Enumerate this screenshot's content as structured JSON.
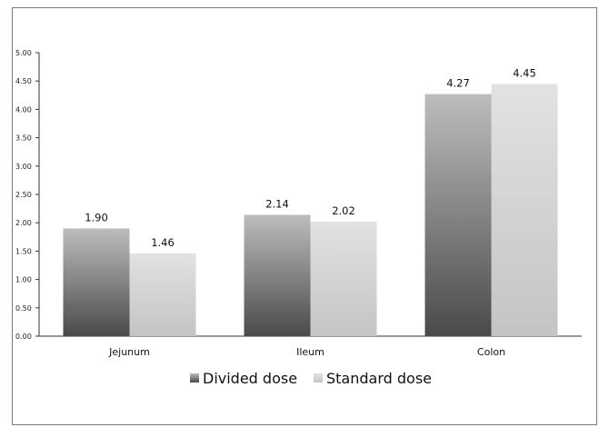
{
  "chart_data": {
    "type": "bar",
    "categories": [
      "Jejunum",
      "Ileum",
      "Colon"
    ],
    "series": [
      {
        "name": "Divided dose",
        "values": [
          1.9,
          2.14,
          4.27
        ],
        "labels": [
          "1.90",
          "2.14",
          "4.27"
        ]
      },
      {
        "name": "Standard dose",
        "values": [
          1.46,
          2.02,
          4.45
        ],
        "labels": [
          "1.46",
          "2.02",
          "4.45"
        ]
      }
    ],
    "ylim": [
      0,
      5
    ],
    "yticks": [
      "0.00",
      "0.50",
      "1.00",
      "1.50",
      "2.00",
      "2.50",
      "3.00",
      "3.50",
      "4.00",
      "4.50",
      "5.00"
    ],
    "title": "",
    "xlabel": "",
    "ylabel": "",
    "grid": false,
    "legend": "bottom",
    "colors": {
      "divided_dark": "#4a4a4a",
      "divided_light": "#bdbdbd",
      "standard_dark": "#c4c4c4",
      "standard_light": "#e2e2e2"
    }
  }
}
